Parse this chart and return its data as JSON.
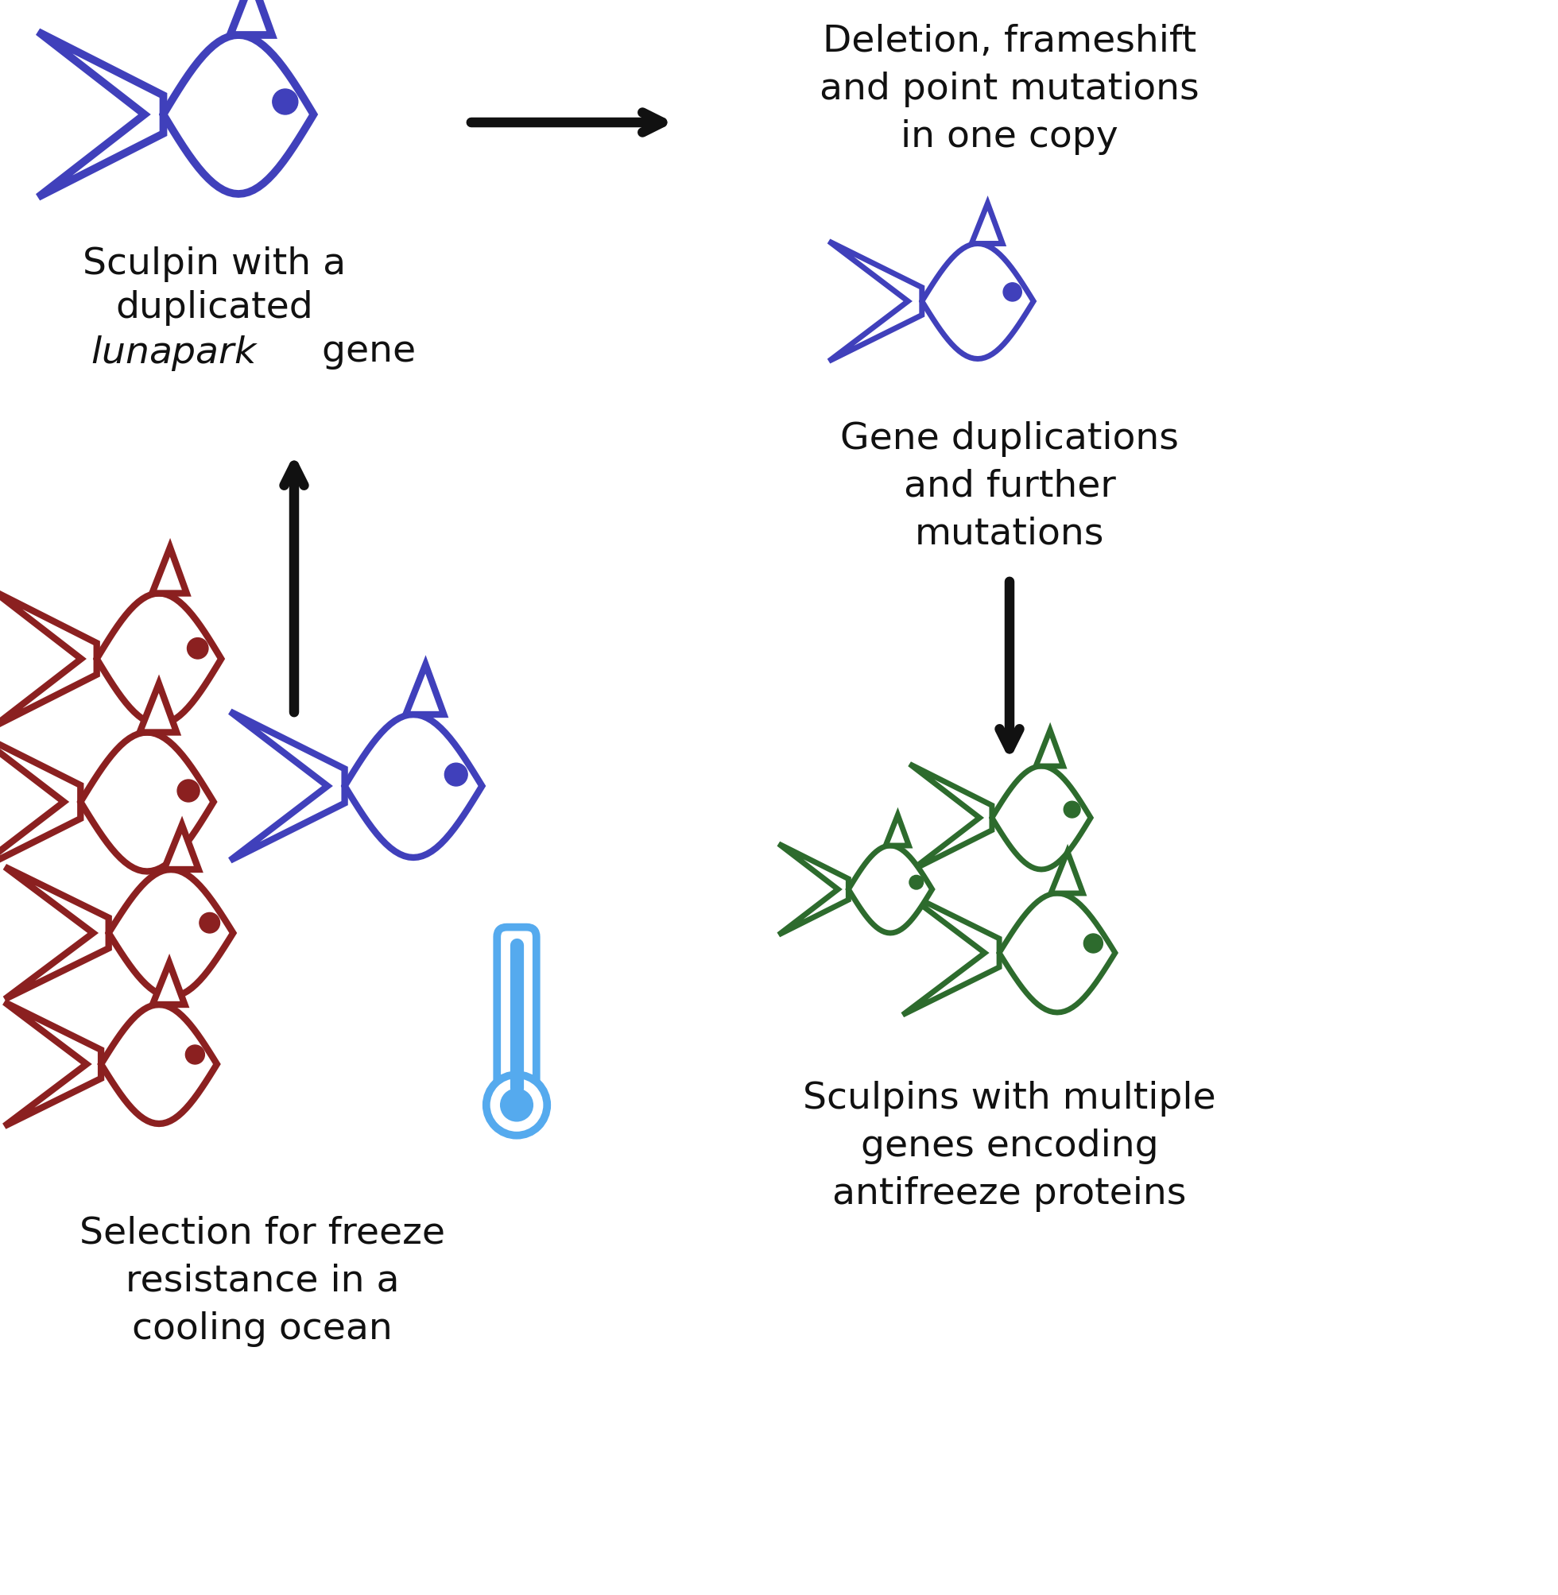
{
  "bg_color": "#ffffff",
  "fish_blue_color": "#4040bb",
  "fish_red_color": "#8b2020",
  "fish_green_color": "#2d6b2d",
  "thermometer_color": "#55aaee",
  "arrow_color": "#111111",
  "text_color": "#111111",
  "labels": {
    "top_left_1": "Sculpin with a",
    "top_left_2": "duplicated",
    "top_left_3": "lunapark",
    "top_left_4": " gene",
    "top_right": "Deletion, frameshift\nand point mutations\nin one copy",
    "mid_right_1": "Gene duplications",
    "mid_right_2": "and further",
    "mid_right_3": "mutations",
    "bot_left_1": "Selection for freeze",
    "bot_left_2": "resistance in a",
    "bot_left_3": "cooling ocean",
    "bot_right_1": "Sculpins with multiple",
    "bot_right_2": "genes encoding",
    "bot_right_3": "antifreeze proteins"
  },
  "font_size": 34
}
